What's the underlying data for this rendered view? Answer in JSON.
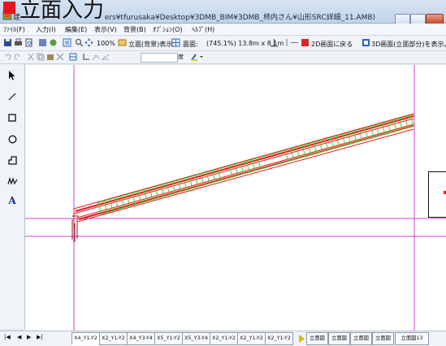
{
  "title": {
    "overlay_label": "立面入力",
    "path_prefix": "建",
    "path_text": "ers¥tfurusaka¥Desktop¥3DMB_BIM¥3DMB_柿内さん¥山形SRC詳細_11.AMB)"
  },
  "menu": [
    {
      "label": "ﾌｧｲﾙ(F)"
    },
    {
      "label": "入力(I)"
    },
    {
      "label": "編集(E)"
    },
    {
      "label": "表示(V)"
    },
    {
      "label": "背景(B)"
    },
    {
      "label": "ｵﾌﾟｼｮﾝ(O)"
    },
    {
      "label": "ﾍﾙﾌﾟ(H)"
    }
  ],
  "toolbar": {
    "zoom": "100%",
    "view_mode": "立面(背景)表示",
    "section_label": "面面:",
    "coords": "(745.1%) 13.8m x 8.1m",
    "return_2d": "2D画面に戻る",
    "show_3d": "3D画面(立面部分)を表示。",
    "angle_label": "度"
  },
  "tabs": [
    {
      "label": "X4_Y1-Y2"
    },
    {
      "label": "X2_Y1-Y2"
    },
    {
      "label": "X4_Y3-Y4"
    },
    {
      "label": "X5_Y1-Y2"
    },
    {
      "label": "X5_Y3-Y4"
    },
    {
      "label": "X2_Y1-Y2"
    },
    {
      "label": "X2_Y1-Y2"
    },
    {
      "label": "X2_Y1-Y2"
    },
    {
      "label": "立面図"
    },
    {
      "label": "立面図"
    },
    {
      "label": "立面図"
    },
    {
      "label": "立面図"
    },
    {
      "label": "立面図13"
    }
  ],
  "nav": {
    "first": "|◀",
    "prev": "◀",
    "next": "▶",
    "last": "▶|"
  },
  "colors": {
    "beam_red": "#e8141c",
    "rebar_green": "#3cd02a",
    "guide_magenta": "#d040d0",
    "dark_red": "#8b1010"
  }
}
